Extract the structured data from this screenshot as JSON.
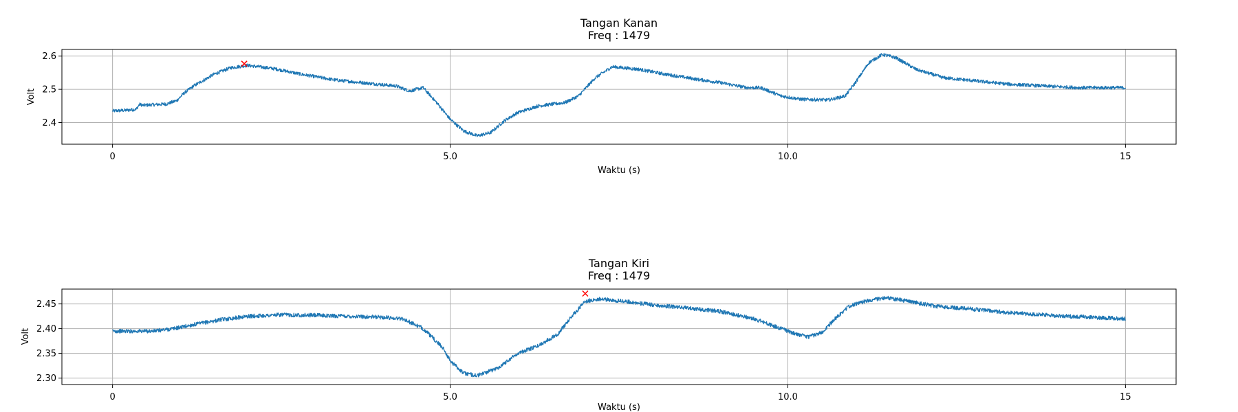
{
  "colors": {
    "series": "#1f77b4",
    "peak_marker": "#ff0000",
    "grid": "#b0b0b0"
  },
  "chart_data": [
    {
      "type": "line",
      "title": "Tangan Kanan",
      "subtitle": "Freq : 1479",
      "xlabel": "Waktu (s)",
      "ylabel": "Volt",
      "xlim": [
        -0.75,
        15.75
      ],
      "ylim": [
        2.335,
        2.62
      ],
      "xticks": [
        0,
        5,
        10,
        15
      ],
      "xtick_labels": [
        "0",
        "5.0",
        "10.0",
        "15"
      ],
      "yticks": [
        2.4,
        2.5,
        2.6
      ],
      "ytick_labels": [
        "2.4",
        "2.5",
        "2.6"
      ],
      "grid": true,
      "noise_amplitude": 0.005,
      "series": [
        {
          "x": [
            0,
            0.2,
            0.35,
            0.4,
            0.45,
            0.8,
            0.95,
            1.05,
            1.2,
            1.5,
            1.75,
            2.0,
            2.4,
            2.8,
            3.3,
            3.8,
            4.2,
            4.4,
            4.6,
            4.8,
            5.0,
            5.2,
            5.4,
            5.6,
            5.8,
            6.0,
            6.3,
            6.7,
            6.9,
            7.15,
            7.4,
            7.8,
            8.2,
            8.6,
            9.0,
            9.4,
            9.6,
            9.9,
            10.2,
            10.6,
            10.85,
            11.0,
            11.2,
            11.4,
            11.6,
            11.9,
            12.3,
            12.8,
            13.3,
            13.8,
            14.3,
            15.0
          ],
          "y": [
            2.435,
            2.437,
            2.44,
            2.455,
            2.452,
            2.456,
            2.466,
            2.487,
            2.51,
            2.545,
            2.565,
            2.572,
            2.562,
            2.545,
            2.528,
            2.518,
            2.51,
            2.495,
            2.505,
            2.46,
            2.41,
            2.375,
            2.36,
            2.37,
            2.405,
            2.43,
            2.45,
            2.46,
            2.48,
            2.535,
            2.568,
            2.56,
            2.545,
            2.532,
            2.52,
            2.505,
            2.505,
            2.48,
            2.47,
            2.468,
            2.48,
            2.52,
            2.58,
            2.605,
            2.595,
            2.56,
            2.535,
            2.525,
            2.515,
            2.51,
            2.505,
            2.505
          ]
        }
      ],
      "peak": {
        "x": 1.95,
        "y": 2.577
      }
    },
    {
      "type": "line",
      "title": "Tangan Kiri",
      "subtitle": "Freq :  1479",
      "xlabel": "Waktu (s)",
      "ylabel": "Volt",
      "xlim": [
        -0.75,
        15.75
      ],
      "ylim": [
        2.287,
        2.48
      ],
      "xticks": [
        0,
        5,
        10,
        15
      ],
      "xtick_labels": [
        "0",
        "5.0",
        "10.0",
        "15"
      ],
      "yticks": [
        2.3,
        2.35,
        2.4,
        2.45
      ],
      "ytick_labels": [
        "2.30",
        "2.35",
        "2.40",
        "2.45"
      ],
      "grid": true,
      "noise_amplitude": 0.004,
      "series": [
        {
          "x": [
            0,
            0.6,
            0.9,
            1.2,
            1.6,
            2.0,
            2.5,
            3.0,
            3.5,
            4.0,
            4.3,
            4.6,
            4.9,
            5.0,
            5.2,
            5.4,
            5.7,
            6.0,
            6.3,
            6.6,
            6.8,
            7.0,
            7.2,
            7.6,
            8.0,
            8.5,
            9.0,
            9.5,
            9.8,
            10.1,
            10.3,
            10.5,
            10.7,
            10.9,
            11.2,
            11.5,
            11.8,
            12.2,
            12.7,
            13.3,
            14.0,
            14.5,
            15.0
          ],
          "y": [
            2.395,
            2.395,
            2.4,
            2.408,
            2.418,
            2.425,
            2.428,
            2.427,
            2.425,
            2.423,
            2.42,
            2.4,
            2.36,
            2.335,
            2.31,
            2.305,
            2.32,
            2.35,
            2.365,
            2.39,
            2.425,
            2.455,
            2.46,
            2.455,
            2.448,
            2.442,
            2.435,
            2.42,
            2.405,
            2.39,
            2.383,
            2.392,
            2.42,
            2.445,
            2.458,
            2.462,
            2.455,
            2.445,
            2.44,
            2.432,
            2.426,
            2.423,
            2.42
          ]
        }
      ],
      "peak": {
        "x": 7.0,
        "y": 2.471
      }
    }
  ]
}
